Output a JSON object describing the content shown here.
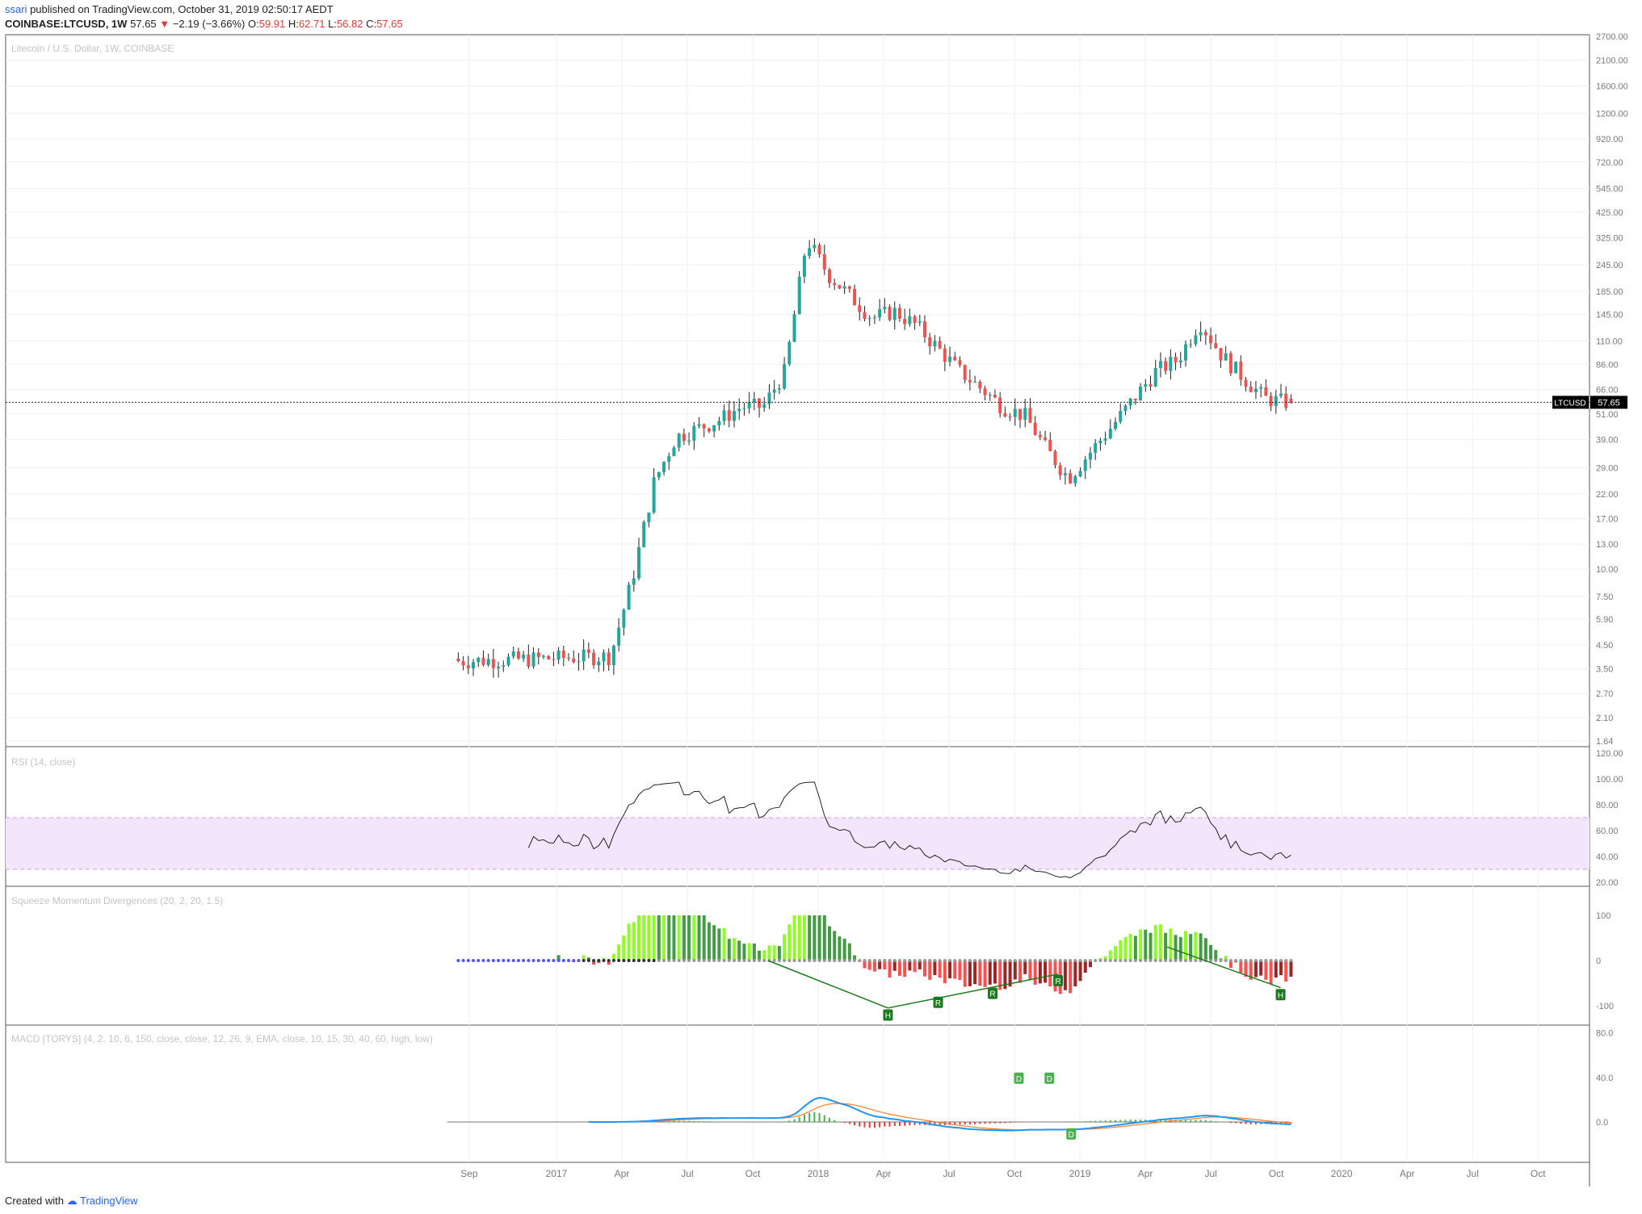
{
  "header": {
    "user": "ssari",
    "published": "published on TradingView.com, October 31, 2019 02:50:17 AEDT",
    "symbol": "COINBASE:LTCUSD, 1W",
    "last": "57.65",
    "change": "−2.19 (−3.66%)",
    "o_label": "O:",
    "o": "59.91",
    "h_label": "H:",
    "h": "62.71",
    "l_label": "L:",
    "l": "56.82",
    "c_label": "C:",
    "c": "57.65"
  },
  "footer": {
    "created": "Created with",
    "brand": "TradingView"
  },
  "price_pane": {
    "title": "Litecoin / U.S. Dollar, 1W, COINBASE",
    "ticks": [
      "2700.00",
      "2100.00",
      "1600.00",
      "1200.00",
      "920.00",
      "720.00",
      "545.00",
      "425.00",
      "325.00",
      "245.00",
      "185.00",
      "145.00",
      "110.00",
      "86.00",
      "66.00",
      "51.00",
      "39.00",
      "29.00",
      "22.00",
      "17.00",
      "13.00",
      "10.00",
      "7.50",
      "5.90",
      "4.50",
      "3.50",
      "2.70",
      "2.10",
      "1.64"
    ],
    "price_label": "LTCUSD",
    "price_value": "57.65"
  },
  "rsi_pane": {
    "title": "RSI (14, close)",
    "ticks": [
      "120.00",
      "100.00",
      "80.00",
      "60.00",
      "40.00",
      "20.00"
    ]
  },
  "sqz_pane": {
    "title": "Squeeze Momentum Divergences (20, 2, 20, 1.5)",
    "ticks": [
      "100",
      "0",
      "-100"
    ],
    "markers": [
      "H",
      "R",
      "R",
      "R",
      "H"
    ]
  },
  "macd_pane": {
    "title": "MACD [TORYS] (4, 2, 10, 6, 150, close, close, 12, 26, 9, EMA, close, 10, 15, 30, 40, 60, high, low)",
    "ticks": [
      "80.0",
      "40.0",
      "0.0"
    ],
    "markers": [
      "D",
      "D",
      "D"
    ]
  },
  "x_axis": {
    "labels": [
      "Sep",
      "2017",
      "Apr",
      "Jul",
      "Oct",
      "2018",
      "Apr",
      "Jul",
      "Oct",
      "2019",
      "Apr",
      "Jul",
      "Oct",
      "2020",
      "Apr",
      "Jul",
      "Oct"
    ]
  },
  "colors": {
    "up": "#26a69a",
    "down": "#ef5350",
    "rsi_band": "#f3e5fc",
    "macd": "#2196f3",
    "signal": "#ff7f27",
    "text_faint": "#c4c4c4"
  },
  "chart_data": {
    "type": "candlestick",
    "symbol": "COINBASE:LTCUSD",
    "interval": "1W",
    "y_scale": "log",
    "ylim": [
      1.64,
      2700
    ],
    "start_week": "2016-08-15",
    "approx_close_path": [
      {
        "date": "2016-08",
        "price": 3.8
      },
      {
        "date": "2016-12",
        "price": 3.9
      },
      {
        "date": "2017-03",
        "price": 4.0
      },
      {
        "date": "2017-04",
        "price": 9.0
      },
      {
        "date": "2017-05",
        "price": 25
      },
      {
        "date": "2017-06",
        "price": 40
      },
      {
        "date": "2017-08",
        "price": 48
      },
      {
        "date": "2017-09",
        "price": 55
      },
      {
        "date": "2017-10",
        "price": 55
      },
      {
        "date": "2017-11",
        "price": 80
      },
      {
        "date": "2017-12",
        "price": 320
      },
      {
        "date": "2018-01",
        "price": 220
      },
      {
        "date": "2018-03",
        "price": 140
      },
      {
        "date": "2018-04",
        "price": 150
      },
      {
        "date": "2018-05",
        "price": 130
      },
      {
        "date": "2018-07",
        "price": 80
      },
      {
        "date": "2018-09",
        "price": 55
      },
      {
        "date": "2018-10",
        "price": 50
      },
      {
        "date": "2018-11",
        "price": 35
      },
      {
        "date": "2018-12",
        "price": 26
      },
      {
        "date": "2019-02",
        "price": 45
      },
      {
        "date": "2019-03",
        "price": 60
      },
      {
        "date": "2019-04",
        "price": 80
      },
      {
        "date": "2019-05",
        "price": 90
      },
      {
        "date": "2019-06",
        "price": 135
      },
      {
        "date": "2019-07",
        "price": 95
      },
      {
        "date": "2019-08",
        "price": 75
      },
      {
        "date": "2019-09",
        "price": 60
      },
      {
        "date": "2019-10",
        "price": 57.65
      }
    ]
  }
}
